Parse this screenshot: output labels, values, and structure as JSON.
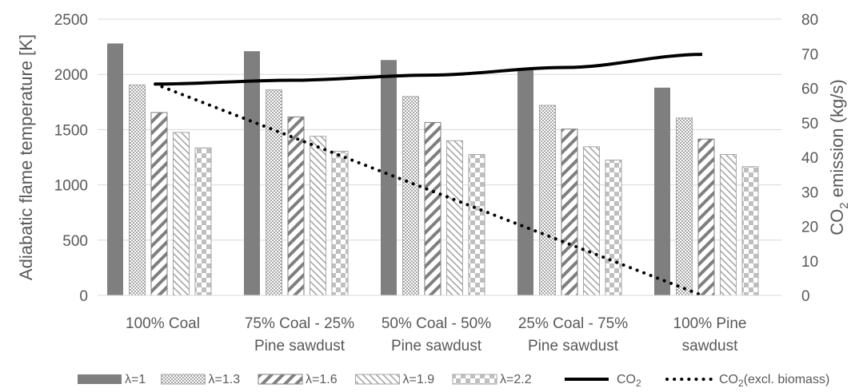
{
  "chart_data": {
    "type": "bar",
    "categories": [
      [
        "100% Coal"
      ],
      [
        "75% Coal - 25%",
        "Pine sawdust"
      ],
      [
        "50% Coal - 50%",
        "Pine sawdust"
      ],
      [
        "25% Coal - 75%",
        "Pine sawdust"
      ],
      [
        "100% Pine",
        "sawdust"
      ]
    ],
    "series": [
      {
        "name": "λ=1",
        "values": [
          2280,
          2210,
          2130,
          2040,
          1880
        ],
        "fill": "#7f7f7f",
        "pattern": "solid"
      },
      {
        "name": "λ=1.3",
        "values": [
          1905,
          1860,
          1800,
          1720,
          1605
        ],
        "fill": "#a6a6a6",
        "pattern": "dots"
      },
      {
        "name": "λ=1.6",
        "values": [
          1655,
          1615,
          1565,
          1505,
          1415
        ],
        "fill": "#7f7f7f",
        "pattern": "wide-downward-diagonal"
      },
      {
        "name": "λ=1.9",
        "values": [
          1475,
          1440,
          1400,
          1345,
          1275
        ],
        "fill": "#a6a6a6",
        "pattern": "light-upward-diagonal"
      },
      {
        "name": "λ=2.2",
        "values": [
          1335,
          1305,
          1275,
          1225,
          1165
        ],
        "fill": "#a6a6a6",
        "pattern": "checker"
      }
    ],
    "lines": [
      {
        "name": "CO",
        "subscript": "2",
        "suffix": "",
        "style": "solid",
        "color": "#000000",
        "values": [
          61.2,
          62.3,
          63.8,
          66.0,
          69.8
        ]
      },
      {
        "name": "CO",
        "subscript": "2",
        "suffix": "(excl. biomass)",
        "style": "dotted",
        "color": "#000000",
        "values": [
          61.2,
          45.9,
          30.6,
          15.3,
          0
        ]
      }
    ],
    "ylabel_left": "Adiabatic flame temperature [K]",
    "ylabel_right": {
      "prefix": "CO",
      "subscript": "2",
      "suffix": " emission (kg/s)"
    },
    "ylim_left": [
      0,
      2500
    ],
    "yticks_left": [
      "0",
      "500",
      "1000",
      "1500",
      "2000",
      "2500"
    ],
    "ylim_right": [
      0,
      80
    ],
    "yticks_right": [
      "0",
      "10",
      "20",
      "30",
      "40",
      "50",
      "60",
      "70",
      "80"
    ],
    "grid": true,
    "legend": "bottom"
  }
}
